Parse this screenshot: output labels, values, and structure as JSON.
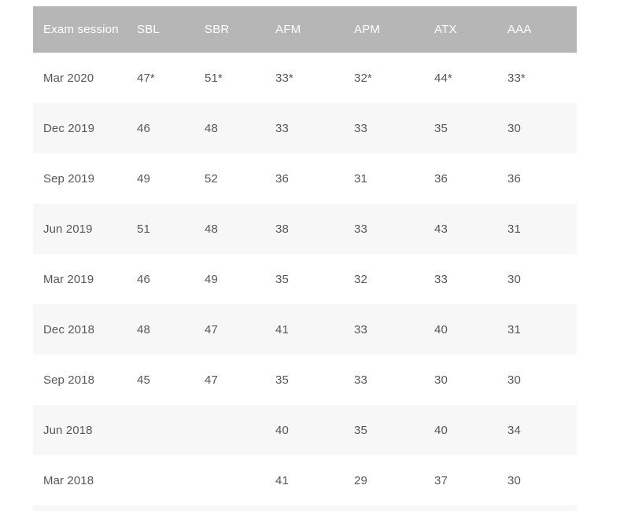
{
  "colors": {
    "header_bg": "#b6b6b6",
    "header_text": "#ffffff",
    "row_bg": "#ffffff",
    "row_alt_bg": "#f7f7f7",
    "cell_text": "#57575b",
    "page_bg": "#ffffff"
  },
  "chart_data": {
    "type": "table",
    "title": "",
    "columns": [
      "Exam session",
      "SBL",
      "SBR",
      "AFM",
      "APM",
      "ATX",
      "AAA"
    ],
    "rows": [
      {
        "session": "Mar 2020",
        "values": [
          "47*",
          "51*",
          "33*",
          "32*",
          "44*",
          "33*"
        ]
      },
      {
        "session": "Dec 2019",
        "values": [
          "46",
          "48",
          "33",
          "33",
          "35",
          "30"
        ]
      },
      {
        "session": "Sep 2019",
        "values": [
          "49",
          "52",
          "36",
          "31",
          "36",
          "36"
        ]
      },
      {
        "session": "Jun 2019",
        "values": [
          "51",
          "48",
          "38",
          "33",
          "43",
          "31"
        ]
      },
      {
        "session": "Mar 2019",
        "values": [
          "46",
          "49",
          "35",
          "32",
          "33",
          "30"
        ]
      },
      {
        "session": "Dec 2018",
        "values": [
          "48",
          "47",
          "41",
          "33",
          "40",
          "31"
        ]
      },
      {
        "session": "Sep 2018",
        "values": [
          "45",
          "47",
          "35",
          "33",
          "30",
          "30"
        ]
      },
      {
        "session": "Jun 2018",
        "values": [
          "",
          "",
          "40",
          "35",
          "40",
          "34"
        ]
      },
      {
        "session": "Mar 2018",
        "values": [
          "",
          "",
          "41",
          "29",
          "37",
          "30"
        ]
      }
    ],
    "footnote_marker": "*",
    "legend_position": "none",
    "grid": "zebra-stripes"
  }
}
